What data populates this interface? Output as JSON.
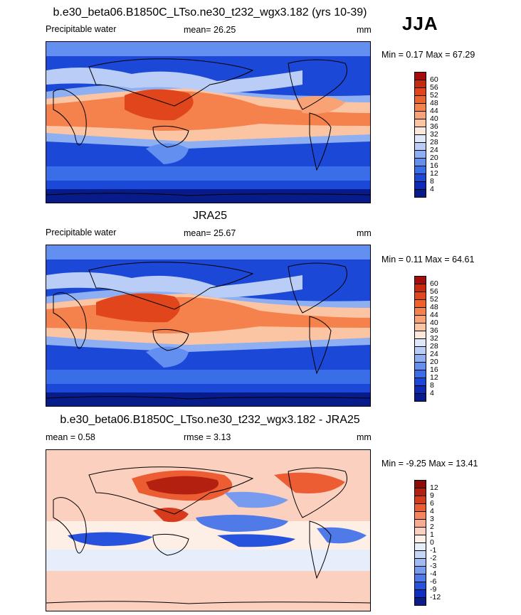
{
  "season": "JJA",
  "panels": [
    {
      "title": "b.e30_beta06.B1850C_LTso.ne30_t232_wgx3.182 (yrs 10-39)",
      "left_label": "Precipitable water",
      "stat_label": "mean=  26.25",
      "units": "mm",
      "minmax": "Min =  0.17 Max =  67.29",
      "kind": "abs"
    },
    {
      "title": "JRA25",
      "left_label": "Precipitable water",
      "stat_label": "mean=  25.67",
      "units": "mm",
      "minmax": "Min =  0.11 Max =  64.61",
      "kind": "abs"
    },
    {
      "title": "b.e30_beta06.B1850C_LTso.ne30_t232_wgx3.182 - JRA25",
      "left_label": "mean =   0.58",
      "stat_label": "rmse =   3.13",
      "units": "mm",
      "minmax": "Min =  -9.25 Max =  13.41",
      "kind": "diff"
    }
  ],
  "abs_scale": {
    "labels": [
      "60",
      "56",
      "52",
      "48",
      "44",
      "40",
      "36",
      "32",
      "28",
      "24",
      "20",
      "16",
      "12",
      "8",
      "4"
    ],
    "colors": [
      "#a50c0c",
      "#c82a0f",
      "#e0451b",
      "#ee6230",
      "#f5824c",
      "#f9a275",
      "#fbc5a4",
      "#fde9dc",
      "#dfe8fb",
      "#b9cdf6",
      "#8eaff2",
      "#628ff0",
      "#3a6ee8",
      "#1c48d8",
      "#0c2ab5",
      "#071c8a"
    ]
  },
  "diff_scale": {
    "labels": [
      "12",
      "9",
      "6",
      "4",
      "3",
      "2",
      "1",
      "0",
      "-1",
      "-2",
      "-3",
      "-4",
      "-6",
      "-9",
      "-12"
    ],
    "colors": [
      "#8a0d0d",
      "#b3200f",
      "#d63c1c",
      "#ec5d33",
      "#f58560",
      "#f9ab8f",
      "#fcd0bf",
      "#fdeee6",
      "#e6eefc",
      "#c5d6f7",
      "#9fbbf2",
      "#779bee",
      "#4f7ae8",
      "#2652dd",
      "#0e30c0",
      "#0a1d8f"
    ]
  }
}
